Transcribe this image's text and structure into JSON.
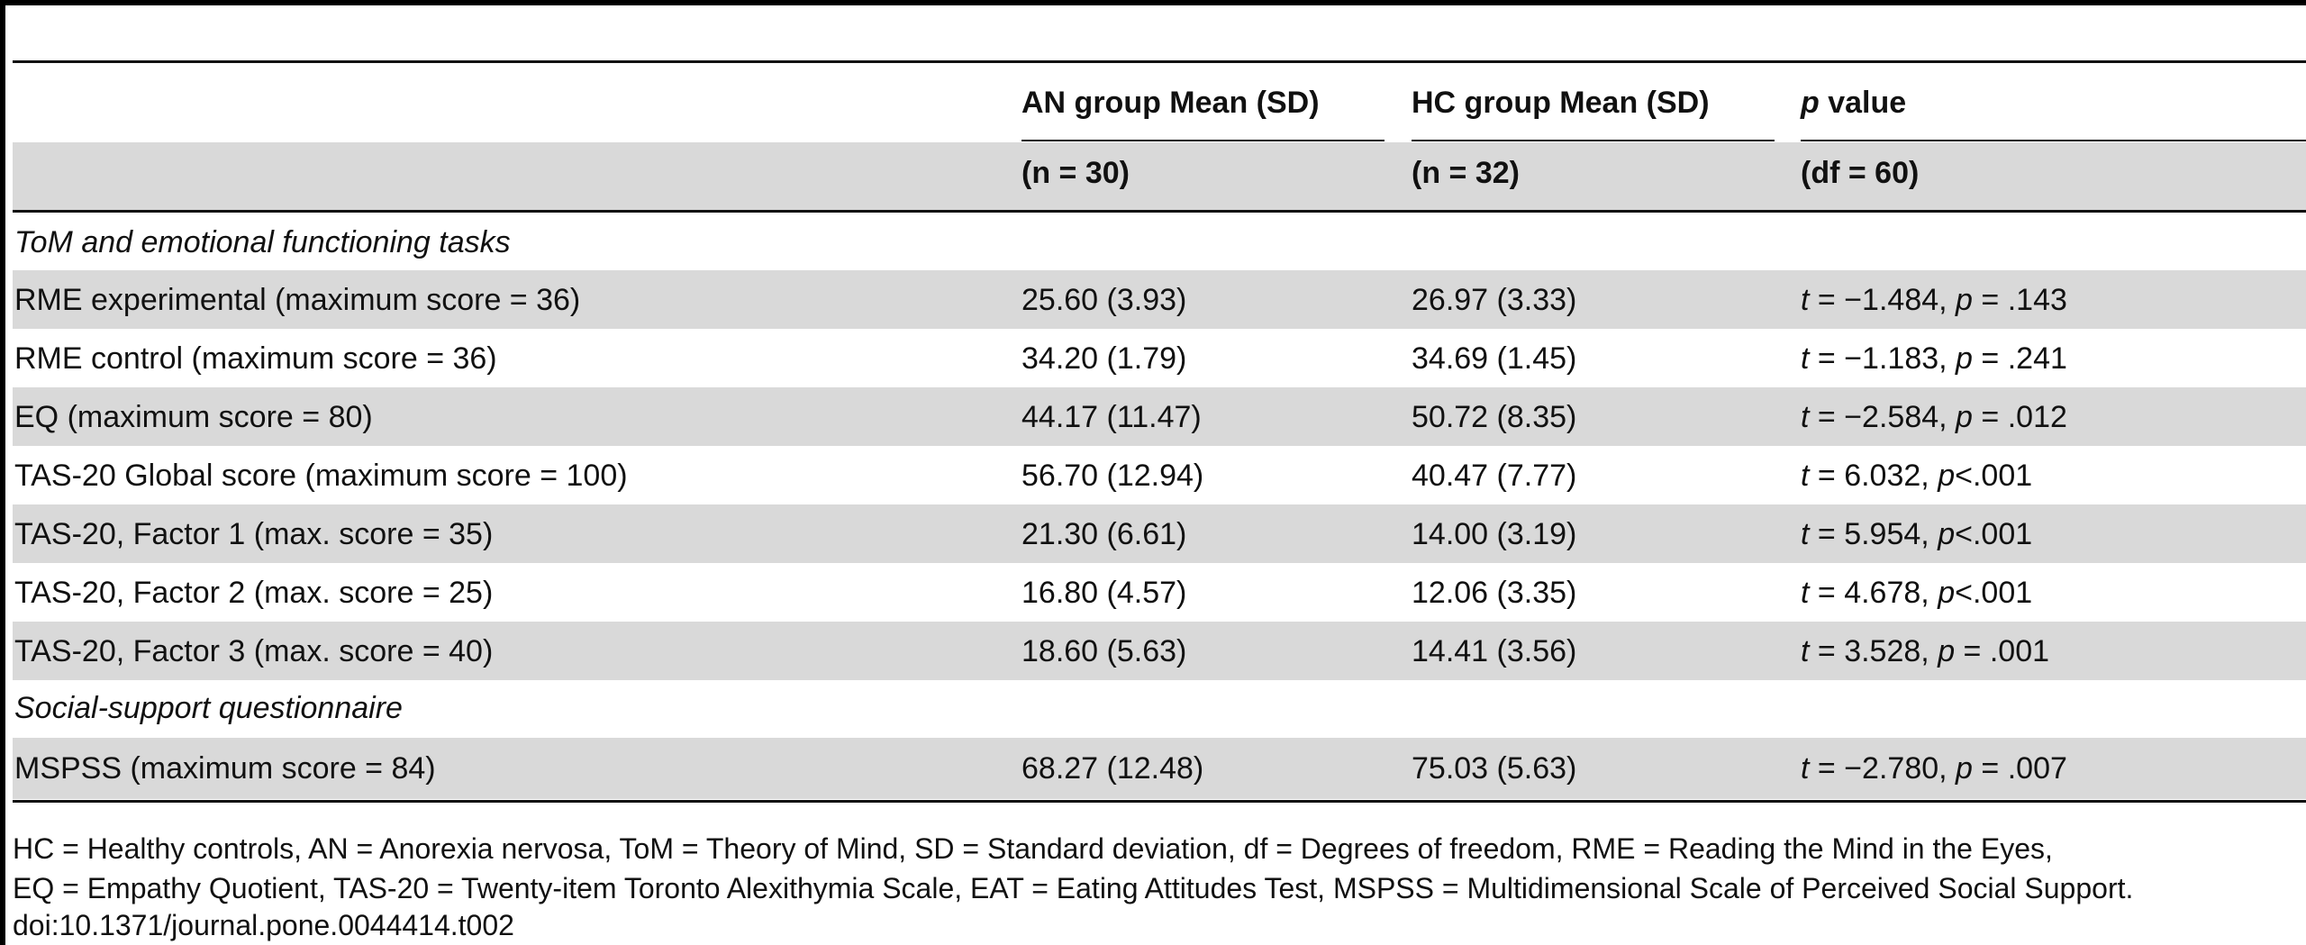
{
  "header": {
    "col1": "",
    "col2_line1": "AN group Mean (SD)",
    "col3_line1": "HC group Mean (SD)",
    "col4_p": "p",
    "col4_rest": " value",
    "col2_line2": "(n = 30)",
    "col3_line2": "(n = 32)",
    "col4_line2": "(df = 60)"
  },
  "sections": {
    "tom": "ToM and emotional functioning tasks",
    "social": "Social-support questionnaire"
  },
  "rows": [
    {
      "label": "RME experimental (maximum score = 36)",
      "an": "25.60 (3.93)",
      "hc": "26.97 (3.33)",
      "t": "t",
      "stat": " = −1.484, ",
      "p": "p",
      "pval": " = .143"
    },
    {
      "label": "RME control (maximum score = 36)",
      "an": "34.20 (1.79)",
      "hc": "34.69 (1.45)",
      "t": "t",
      "stat": " = −1.183, ",
      "p": "p",
      "pval": " = .241"
    },
    {
      "label": "EQ (maximum score = 80)",
      "an": "44.17 (11.47)",
      "hc": "50.72 (8.35)",
      "t": "t",
      "stat": " = −2.584, ",
      "p": "p",
      "pval": " = .012"
    },
    {
      "label": "TAS-20 Global score (maximum score = 100)",
      "an": "56.70 (12.94)",
      "hc": "40.47 (7.77)",
      "t": "t",
      "stat": " = 6.032, ",
      "p": "p",
      "pval": "<.001"
    },
    {
      "label": "TAS-20, Factor 1 (max. score = 35)",
      "an": "21.30 (6.61)",
      "hc": "14.00 (3.19)",
      "t": "t",
      "stat": " = 5.954, ",
      "p": "p",
      "pval": "<.001"
    },
    {
      "label": "TAS-20, Factor 2 (max. score = 25)",
      "an": "16.80 (4.57)",
      "hc": "12.06 (3.35)",
      "t": "t",
      "stat": " = 4.678, ",
      "p": "p",
      "pval": "<.001"
    },
    {
      "label": "TAS-20, Factor 3 (max. score = 40)",
      "an": "18.60 (5.63)",
      "hc": "14.41 (3.56)",
      "t": "t",
      "stat": " = 3.528, ",
      "p": "p",
      "pval": " = .001"
    },
    {
      "label": "MSPSS (maximum score = 84)",
      "an": "68.27 (12.48)",
      "hc": "75.03 (5.63)",
      "t": "t",
      "stat": " = −2.780, ",
      "p": "p",
      "pval": " = .007"
    }
  ],
  "footnote": {
    "line1": "HC = Healthy controls, AN = Anorexia nervosa, ToM = Theory of Mind, SD = Standard deviation, df = Degrees of freedom, RME = Reading the Mind in the Eyes,",
    "line2": "EQ = Empathy Quotient, TAS-20 = Twenty-item Toronto Alexithymia Scale, EAT = Eating Attitudes Test, MSPSS = Multidimensional Scale of Perceived Social Support.",
    "doi": "doi:10.1371/journal.pone.0044414.t002"
  },
  "colors": {
    "band": "#d9d9d9",
    "rule": "#111111",
    "text": "#111111"
  }
}
